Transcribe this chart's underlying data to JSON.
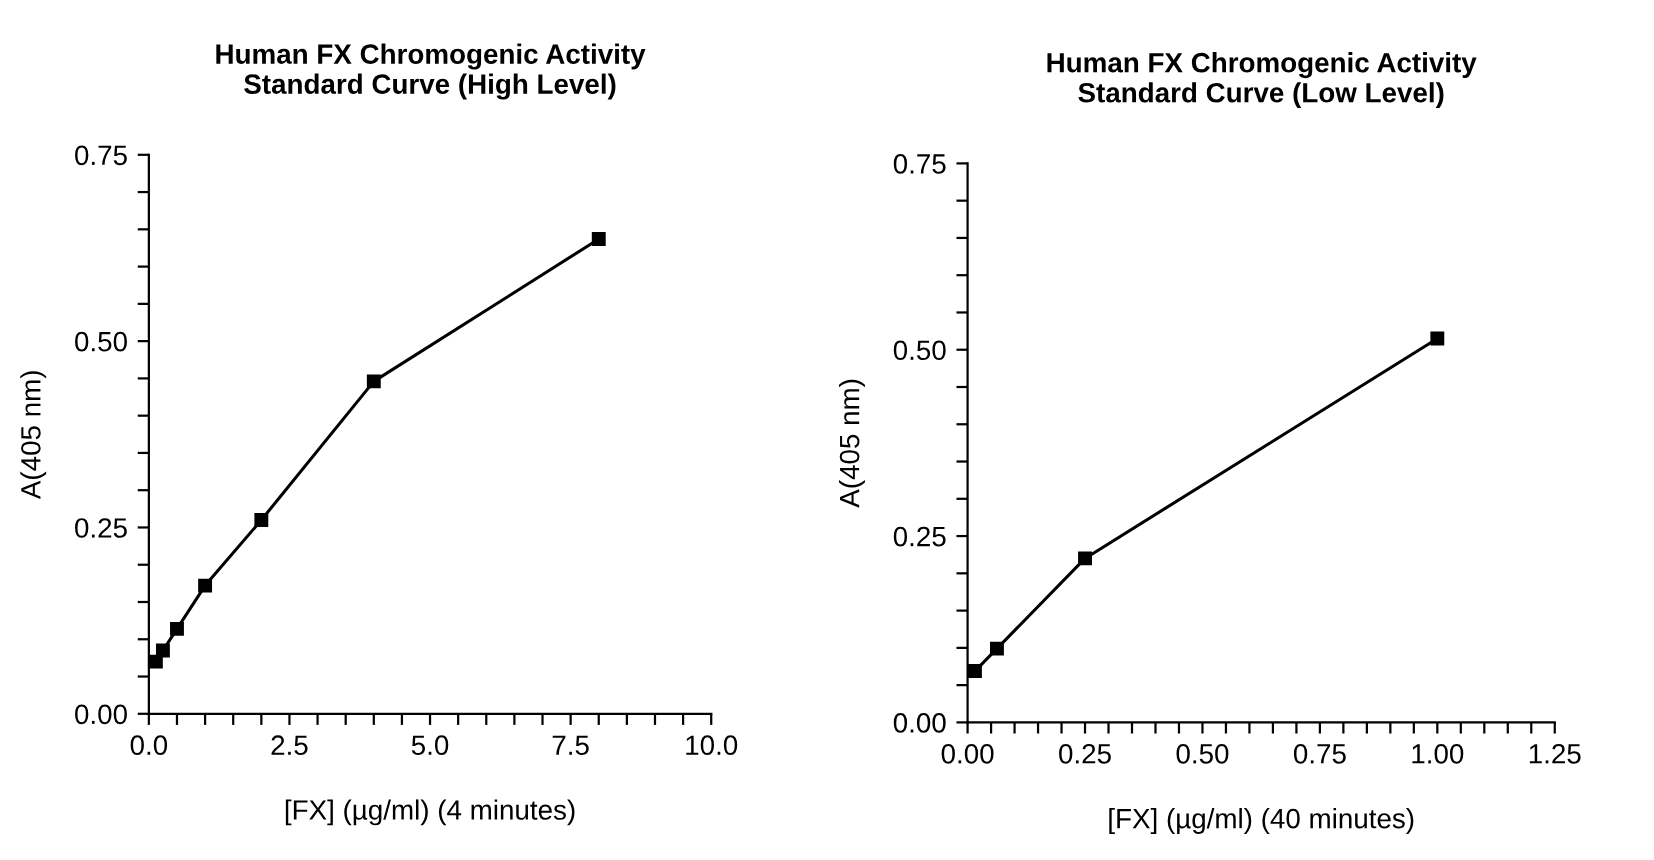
{
  "chart_data": [
    {
      "type": "line",
      "title": "Human FX Chromogenic Activity\nStandard Curve (High Level)",
      "xlabel": "[FX] (µg/ml) (4 minutes)",
      "ylabel": "A(405 nm)",
      "x": [
        0.125,
        0.25,
        0.5,
        1,
        2,
        4,
        8
      ],
      "series": [
        {
          "color": "#000000",
          "values": [
            0.07,
            0.085,
            0.114,
            0.172,
            0.26,
            0.446,
            0.637
          ]
        }
      ],
      "xlim": [
        0,
        10
      ],
      "ylim": [
        0,
        0.75
      ],
      "xticks": [
        {
          "value": 0,
          "label": "0.0"
        },
        {
          "value": 0.5,
          "label": null
        },
        {
          "value": 1,
          "label": null
        },
        {
          "value": 1.5,
          "label": null
        },
        {
          "value": 2,
          "label": null
        },
        {
          "value": 2.5,
          "label": "2.5"
        },
        {
          "value": 3,
          "label": null
        },
        {
          "value": 3.5,
          "label": null
        },
        {
          "value": 4,
          "label": null
        },
        {
          "value": 4.5,
          "label": null
        },
        {
          "value": 5,
          "label": "5.0"
        },
        {
          "value": 5.5,
          "label": null
        },
        {
          "value": 6,
          "label": null
        },
        {
          "value": 6.5,
          "label": null
        },
        {
          "value": 7,
          "label": null
        },
        {
          "value": 7.5,
          "label": "7.5"
        },
        {
          "value": 8,
          "label": null
        },
        {
          "value": 8.5,
          "label": null
        },
        {
          "value": 9,
          "label": null
        },
        {
          "value": 9.5,
          "label": null
        },
        {
          "value": 10,
          "label": "10.0"
        }
      ],
      "yticks": [
        {
          "value": 0,
          "label": "0.00"
        },
        {
          "value": 0.05,
          "label": null
        },
        {
          "value": 0.1,
          "label": null
        },
        {
          "value": 0.15,
          "label": null
        },
        {
          "value": 0.2,
          "label": null
        },
        {
          "value": 0.25,
          "label": "0.25"
        },
        {
          "value": 0.3,
          "label": null
        },
        {
          "value": 0.35,
          "label": null
        },
        {
          "value": 0.4,
          "label": null
        },
        {
          "value": 0.45,
          "label": null
        },
        {
          "value": 0.5,
          "label": "0.50"
        },
        {
          "value": 0.55,
          "label": null
        },
        {
          "value": 0.6,
          "label": null
        },
        {
          "value": 0.65,
          "label": null
        },
        {
          "value": 0.7,
          "label": null
        },
        {
          "value": 0.75,
          "label": "0.75"
        }
      ],
      "marker": "square",
      "line_style": "solid",
      "grid": false,
      "legend": false
    },
    {
      "type": "line",
      "title": "Human FX Chromogenic Activity\nStandard Curve (Low Level)",
      "xlabel": "[FX] (µg/ml) (40 minutes)",
      "ylabel": "A(405 nm)",
      "x": [
        0.015625,
        0.0625,
        0.25,
        1
      ],
      "series": [
        {
          "color": "#000000",
          "values": [
            0.069,
            0.099,
            0.22,
            0.515
          ]
        }
      ],
      "xlim": [
        0,
        1.25
      ],
      "ylim": [
        0,
        0.75
      ],
      "xticks": [
        {
          "value": 0,
          "label": "0.00"
        },
        {
          "value": 0.05,
          "label": null
        },
        {
          "value": 0.1,
          "label": null
        },
        {
          "value": 0.15,
          "label": null
        },
        {
          "value": 0.2,
          "label": null
        },
        {
          "value": 0.25,
          "label": "0.25"
        },
        {
          "value": 0.3,
          "label": null
        },
        {
          "value": 0.35,
          "label": null
        },
        {
          "value": 0.4,
          "label": null
        },
        {
          "value": 0.45,
          "label": null
        },
        {
          "value": 0.5,
          "label": "0.50"
        },
        {
          "value": 0.55,
          "label": null
        },
        {
          "value": 0.6,
          "label": null
        },
        {
          "value": 0.65,
          "label": null
        },
        {
          "value": 0.7,
          "label": null
        },
        {
          "value": 0.75,
          "label": "0.75"
        },
        {
          "value": 0.8,
          "label": null
        },
        {
          "value": 0.85,
          "label": null
        },
        {
          "value": 0.9,
          "label": null
        },
        {
          "value": 0.95,
          "label": null
        },
        {
          "value": 1.0,
          "label": "1.00"
        },
        {
          "value": 1.05,
          "label": null
        },
        {
          "value": 1.1,
          "label": null
        },
        {
          "value": 1.15,
          "label": null
        },
        {
          "value": 1.2,
          "label": null
        },
        {
          "value": 1.25,
          "label": "1.25"
        }
      ],
      "yticks": [
        {
          "value": 0,
          "label": "0.00"
        },
        {
          "value": 0.05,
          "label": null
        },
        {
          "value": 0.1,
          "label": null
        },
        {
          "value": 0.15,
          "label": null
        },
        {
          "value": 0.2,
          "label": null
        },
        {
          "value": 0.25,
          "label": "0.25"
        },
        {
          "value": 0.3,
          "label": null
        },
        {
          "value": 0.35,
          "label": null
        },
        {
          "value": 0.4,
          "label": null
        },
        {
          "value": 0.45,
          "label": null
        },
        {
          "value": 0.5,
          "label": "0.50"
        },
        {
          "value": 0.55,
          "label": null
        },
        {
          "value": 0.6,
          "label": null
        },
        {
          "value": 0.65,
          "label": null
        },
        {
          "value": 0.7,
          "label": null
        },
        {
          "value": 0.75,
          "label": "0.75"
        }
      ],
      "marker": "square",
      "line_style": "solid",
      "grid": false,
      "legend": false
    }
  ]
}
